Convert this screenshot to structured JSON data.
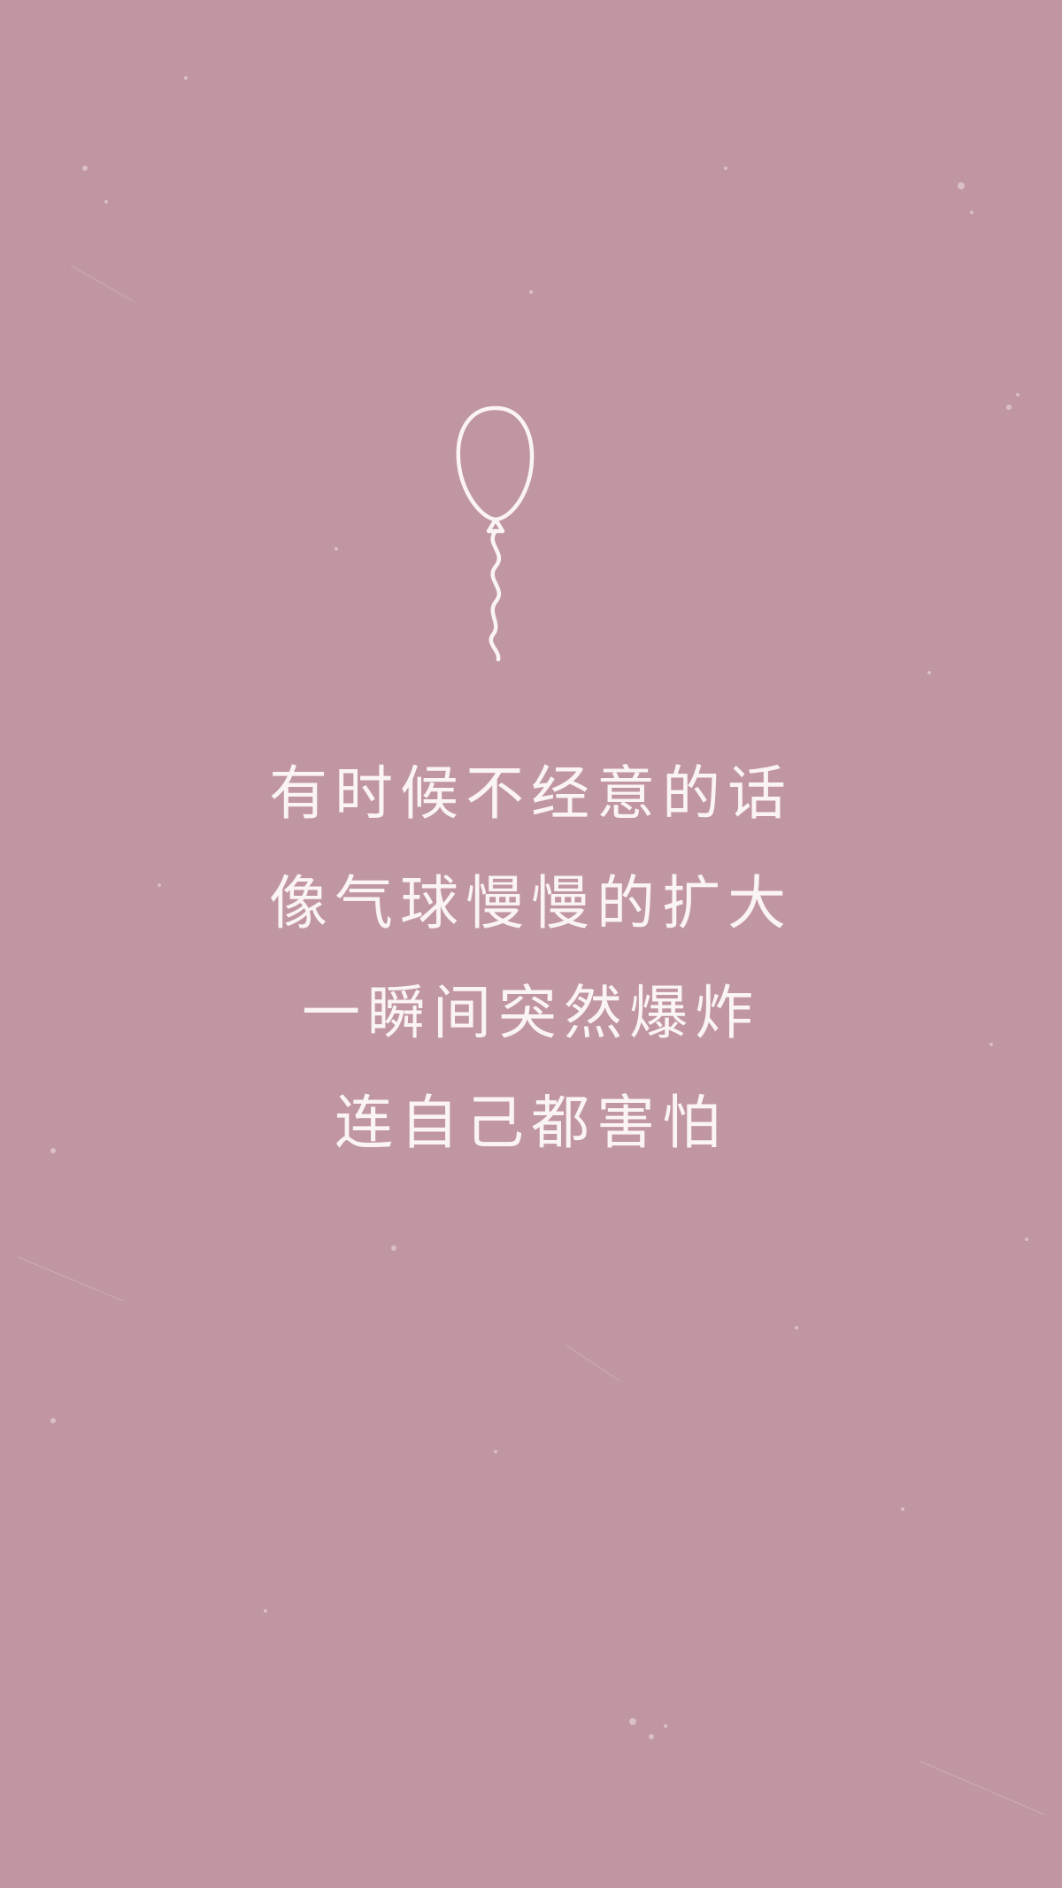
{
  "background_color": "#c096a0",
  "text_color": "#fbf4f4",
  "illustration": {
    "icon": "balloon-icon"
  },
  "poem": {
    "lines": [
      "有时候不经意的话",
      "像气球慢慢的扩大",
      "一瞬间突然爆炸",
      "连自己都害怕"
    ]
  }
}
